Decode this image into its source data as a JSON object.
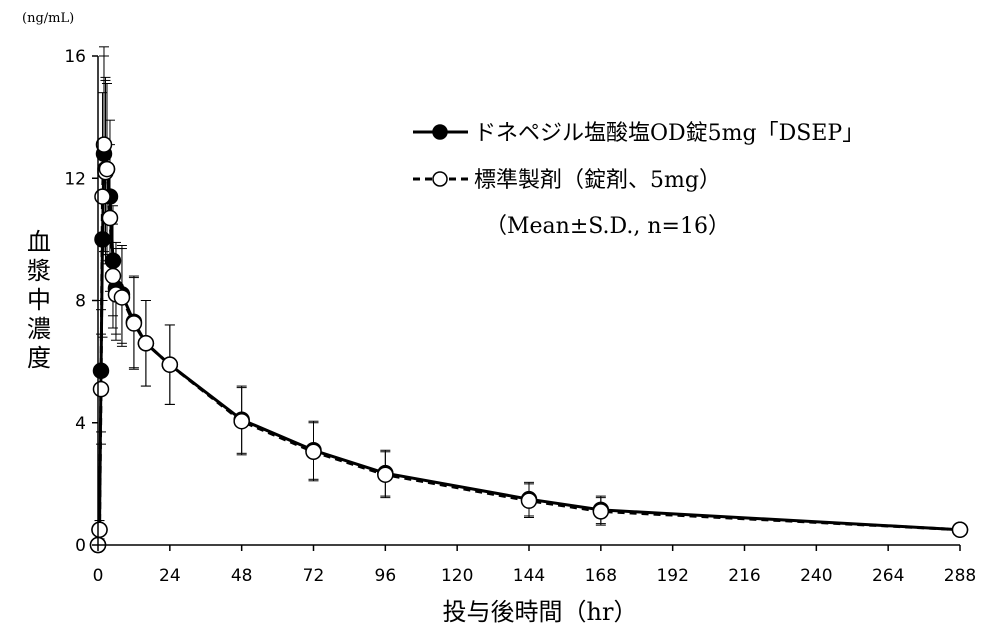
{
  "chart_data": {
    "type": "line",
    "y_unit": "(ng/mL)",
    "ylabel": "血漿中濃度",
    "xlabel": "投与後時間（hr）",
    "xlim": [
      0,
      288
    ],
    "ylim": [
      0,
      16
    ],
    "x_ticks": [
      0,
      24,
      48,
      72,
      96,
      120,
      144,
      168,
      192,
      216,
      240,
      264,
      288
    ],
    "y_ticks": [
      0,
      4,
      8,
      12,
      16
    ],
    "grid": false,
    "legend_position": "top-right",
    "note": "（Mean±S.D., n=16）",
    "x": [
      0,
      0.5,
      1,
      1.5,
      2,
      2.5,
      3,
      4,
      5,
      6,
      8,
      12,
      16,
      24,
      48,
      72,
      96,
      144,
      168,
      288
    ],
    "series": [
      {
        "name": "ドネペジル塩酸塩OD錠5mg「DSEP」",
        "marker": "filled-circle",
        "line": "solid",
        "color": "#000000",
        "values": [
          0,
          0.5,
          5.7,
          10.0,
          12.8,
          12.3,
          12.3,
          11.4,
          9.3,
          8.4,
          8.2,
          7.3,
          6.6,
          5.9,
          4.1,
          3.1,
          2.35,
          1.5,
          1.15,
          0.5
        ],
        "sd": [
          0,
          0.3,
          2.0,
          3.2,
          3.2,
          3.0,
          2.8,
          2.5,
          1.8,
          1.5,
          1.6,
          1.5,
          1.4,
          1.3,
          1.1,
          0.95,
          0.75,
          0.55,
          0.45,
          0.2
        ]
      },
      {
        "name": "標準製剤（錠剤、5mg）",
        "marker": "open-circle",
        "line": "dashed",
        "color": "#000000",
        "values": [
          0,
          0.5,
          5.1,
          11.4,
          13.1,
          12.2,
          12.3,
          10.7,
          8.8,
          8.2,
          8.1,
          7.25,
          6.6,
          5.9,
          4.05,
          3.05,
          2.3,
          1.45,
          1.1,
          0.5
        ],
        "sd": [
          0,
          0.3,
          1.8,
          3.4,
          3.2,
          3.0,
          2.8,
          2.4,
          1.7,
          1.5,
          1.6,
          1.5,
          1.4,
          1.3,
          1.1,
          0.95,
          0.75,
          0.55,
          0.45,
          0.2
        ]
      }
    ]
  }
}
